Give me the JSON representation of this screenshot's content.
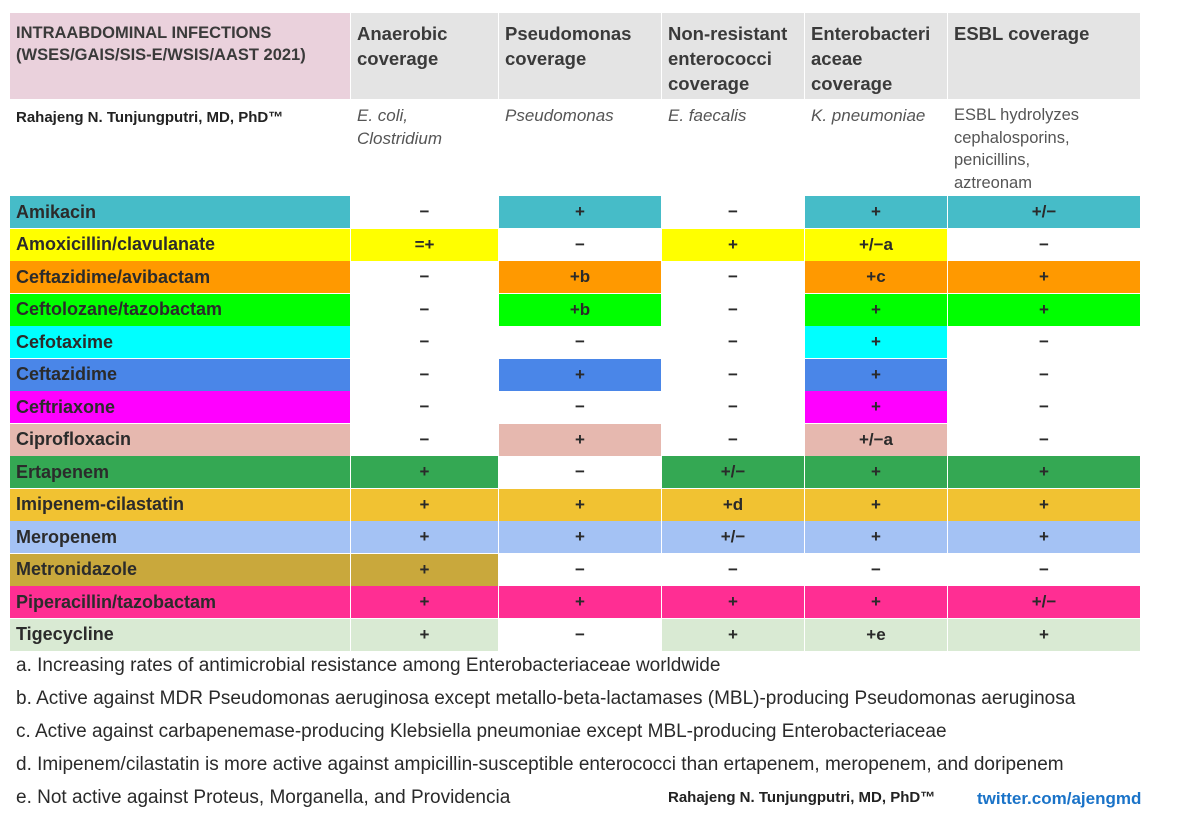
{
  "header": {
    "title": "INTRAABDOMINAL INFECTIONS\n(WSES/GAIS/SIS-E/WSIS/AAST 2021)",
    "columns": [
      "Anaerobic\ncoverage",
      "Pseudomonas\ncoverage",
      "Non-resistant\nenterococci\ncoverage",
      "Enterobacteri\naceae\ncoverage",
      "ESBL coverage"
    ]
  },
  "subheader": {
    "author": "Rahajeng N. Tunjungputri, MD, PhD™",
    "examples": [
      "E. coli,\nClostridium",
      "Pseudomonas",
      "E. faecalis",
      "K. pneumoniae",
      "ESBL hydrolyzes\ncephalosporins,\npenicillins,\naztreonam"
    ]
  },
  "rows": [
    {
      "drug": "Amikacin",
      "color": "#46bcc8",
      "values": [
        "−",
        "+",
        "−",
        "+",
        "+/−"
      ],
      "highlight": [
        false,
        true,
        false,
        true,
        true
      ]
    },
    {
      "drug": "Amoxicillin/clavulanate",
      "color": "#ffff00",
      "values": [
        "=+",
        "−",
        "+",
        "+/−a",
        "−"
      ],
      "highlight": [
        true,
        false,
        true,
        true,
        false
      ]
    },
    {
      "drug": "Ceftazidime/avibactam",
      "color": "#ff9900",
      "values": [
        "−",
        "+b",
        "−",
        "+c",
        "+"
      ],
      "highlight": [
        false,
        true,
        false,
        true,
        true
      ]
    },
    {
      "drug": "Ceftolozane/tazobactam",
      "color": "#00ff00",
      "values": [
        "−",
        "+b",
        "−",
        "+",
        "+"
      ],
      "highlight": [
        false,
        true,
        false,
        true,
        true
      ]
    },
    {
      "drug": "Cefotaxime",
      "color": "#00ffff",
      "values": [
        "−",
        "−",
        "−",
        "+",
        "−"
      ],
      "highlight": [
        false,
        false,
        false,
        true,
        false
      ]
    },
    {
      "drug": "Ceftazidime",
      "color": "#4a86e8",
      "values": [
        "−",
        "+",
        "−",
        "+",
        "−"
      ],
      "highlight": [
        false,
        true,
        false,
        true,
        false
      ]
    },
    {
      "drug": "Ceftriaxone",
      "color": "#ff00ff",
      "values": [
        "−",
        "−",
        "−",
        "+",
        "−"
      ],
      "highlight": [
        false,
        false,
        false,
        true,
        false
      ]
    },
    {
      "drug": "Ciprofloxacin",
      "color": "#e6b8af",
      "values": [
        "−",
        "+",
        "−",
        "+/−a",
        "−"
      ],
      "highlight": [
        false,
        true,
        false,
        true,
        false
      ]
    },
    {
      "drug": "Ertapenem",
      "color": "#34a853",
      "values": [
        "+",
        "−",
        "+/−",
        "+",
        "+"
      ],
      "highlight": [
        true,
        false,
        true,
        true,
        true
      ]
    },
    {
      "drug": "Imipenem-cilastatin",
      "color": "#f1c232",
      "values": [
        "+",
        "+",
        "+d",
        "+",
        "+"
      ],
      "highlight": [
        true,
        true,
        true,
        true,
        true
      ]
    },
    {
      "drug": "Meropenem",
      "color": "#a4c2f4",
      "values": [
        "+",
        "+",
        "+/−",
        "+",
        "+"
      ],
      "highlight": [
        true,
        true,
        true,
        true,
        true
      ]
    },
    {
      "drug": "Metronidazole",
      "color": "#c9a83c",
      "values": [
        "+",
        "−",
        "−",
        "−",
        "−"
      ],
      "highlight": [
        true,
        false,
        false,
        false,
        false
      ]
    },
    {
      "drug": "Piperacillin/tazobactam",
      "color": "#ff2e93",
      "values": [
        "+",
        "+",
        "+",
        "+",
        "+/−"
      ],
      "highlight": [
        true,
        true,
        true,
        true,
        true
      ]
    },
    {
      "drug": "Tigecycline",
      "color": "#d9ead3",
      "values": [
        "+",
        "−",
        "+",
        "+e",
        "+"
      ],
      "highlight": [
        true,
        false,
        true,
        true,
        true
      ]
    }
  ],
  "notes": [
    "a. Increasing rates of antimicrobial resistance among Enterobacteriaceae worldwide",
    "b. Active against MDR Pseudomonas aeruginosa except metallo-beta-lactamases (MBL)-producing Pseudomonas aeruginosa",
    "c. Active against carbapenemase-producing Klebsiella pneumoniae except MBL-producing Enterobacteriaceae",
    "d. Imipenem/cilastatin is more active against ampicillin-susceptible enterococci than ertapenem, meropenem, and doripenem",
    "e. Not active against Proteus, Morganella, and Providencia"
  ],
  "footer": {
    "credit": "Rahajeng N. Tunjungputri, MD, PhD™",
    "twitter": "twitter.com/ajengmd"
  }
}
